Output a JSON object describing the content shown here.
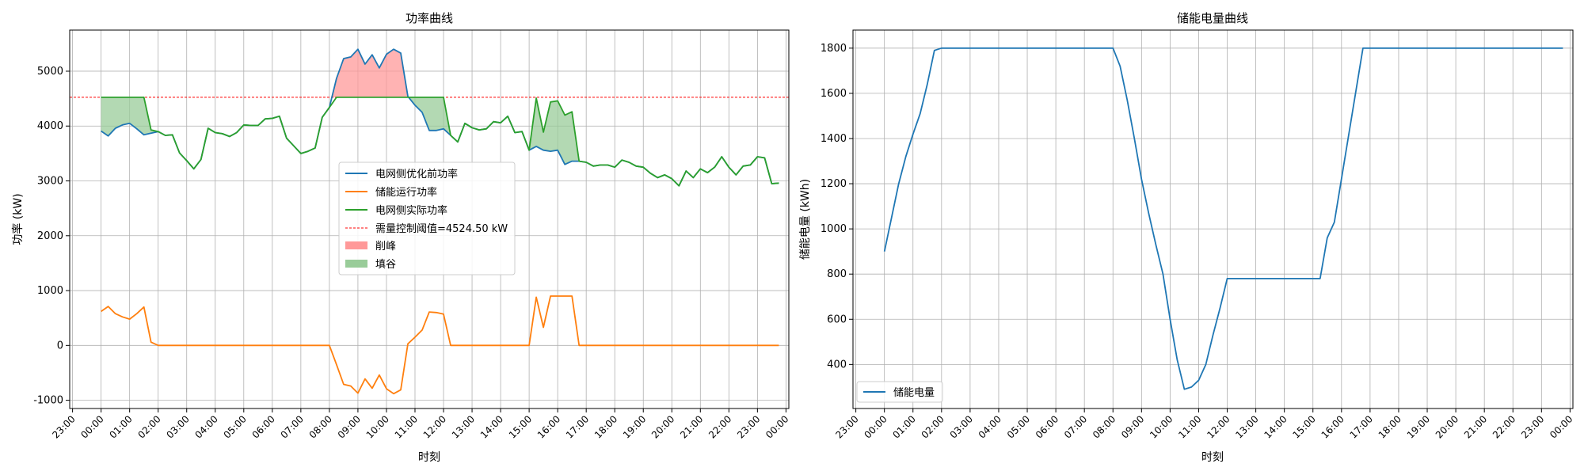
{
  "chart_data": [
    {
      "type": "line",
      "title": "功率曲线",
      "xlabel": "时刻",
      "ylabel": "功率 (kW)",
      "x_ticks": [
        "23:00",
        "00:00",
        "01:00",
        "02:00",
        "03:00",
        "04:00",
        "05:00",
        "06:00",
        "07:00",
        "08:00",
        "09:00",
        "10:00",
        "11:00",
        "12:00",
        "13:00",
        "14:00",
        "15:00",
        "16:00",
        "17:00",
        "18:00",
        "19:00",
        "20:00",
        "21:00",
        "22:00",
        "23:00",
        "00:00"
      ],
      "xlim": [
        -1.1,
        24.1
      ],
      "ylim": [
        -1150,
        5750
      ],
      "y_ticks": [
        -1000,
        0,
        1000,
        2000,
        3000,
        4000,
        5000
      ],
      "grid": true,
      "legend_position": "center",
      "x": [
        0,
        0.25,
        0.5,
        0.75,
        1,
        1.25,
        1.5,
        1.75,
        2,
        2.25,
        2.5,
        2.75,
        3,
        3.25,
        3.5,
        3.75,
        4,
        4.25,
        4.5,
        4.75,
        5,
        5.25,
        5.5,
        5.75,
        6,
        6.25,
        6.5,
        6.75,
        7,
        7.25,
        7.5,
        7.75,
        8,
        8.25,
        8.5,
        8.75,
        9,
        9.25,
        9.5,
        9.75,
        10,
        10.25,
        10.5,
        10.75,
        11,
        11.25,
        11.5,
        11.75,
        12,
        12.25,
        12.5,
        12.75,
        13,
        13.25,
        13.5,
        13.75,
        14,
        14.25,
        14.5,
        14.75,
        15,
        15.25,
        15.5,
        15.75,
        16,
        16.25,
        16.5,
        16.75,
        17,
        17.25,
        17.5,
        17.75,
        18,
        18.25,
        18.5,
        18.75,
        19,
        19.25,
        19.5,
        19.75,
        20,
        20.25,
        20.5,
        20.75,
        21,
        21.25,
        21.5,
        21.75,
        22,
        22.25,
        22.5,
        22.75,
        23,
        23.25,
        23.5,
        23.75
      ],
      "series": [
        {
          "name": "电网侧优化前功率",
          "color": "#1f77b4",
          "values": [
            3910,
            3820,
            3960,
            4020,
            4050,
            3950,
            3840,
            3870,
            3900,
            3830,
            3840,
            3510,
            3370,
            3220,
            3390,
            3960,
            3880,
            3860,
            3810,
            3880,
            4020,
            4010,
            4010,
            4130,
            4140,
            4180,
            3780,
            3640,
            3500,
            3540,
            3600,
            4160,
            4340,
            4870,
            5230,
            5260,
            5400,
            5130,
            5300,
            5060,
            5310,
            5400,
            5330,
            4540,
            4380,
            4250,
            3920,
            3920,
            3950,
            3830,
            3710,
            4050,
            3970,
            3930,
            3950,
            4080,
            4060,
            4180,
            3880,
            3900,
            3560,
            3630,
            3560,
            3540,
            3560,
            3300,
            3360,
            3360,
            3340,
            3270,
            3290,
            3290,
            3250,
            3380,
            3340,
            3270,
            3250,
            3140,
            3060,
            3110,
            3040,
            2910,
            3180,
            3060,
            3220,
            3150,
            3250,
            3440,
            3250,
            3110,
            3270,
            3290,
            3440,
            3420,
            2950,
            2960
          ]
        },
        {
          "name": "储能运行功率",
          "color": "#ff7f0e",
          "values": [
            620,
            710,
            580,
            520,
            480,
            580,
            700,
            60,
            0,
            0,
            0,
            0,
            0,
            0,
            0,
            0,
            0,
            0,
            0,
            0,
            0,
            0,
            0,
            0,
            0,
            0,
            0,
            0,
            0,
            0,
            0,
            0,
            0,
            -350,
            -710,
            -740,
            -870,
            -610,
            -780,
            -540,
            -790,
            -880,
            -810,
            30,
            150,
            280,
            610,
            600,
            570,
            0,
            0,
            0,
            0,
            0,
            0,
            0,
            0,
            0,
            0,
            0,
            0,
            880,
            330,
            900,
            900,
            900,
            900,
            0,
            0,
            0,
            0,
            0,
            0,
            0,
            0,
            0,
            0,
            0,
            0,
            0,
            0,
            0,
            0,
            0,
            0,
            0,
            0,
            0,
            0,
            0,
            0,
            0,
            0,
            0,
            0,
            0
          ]
        },
        {
          "name": "电网侧实际功率",
          "color": "#2ca02c",
          "values": [
            4524.5,
            4524.5,
            4524.5,
            4524.5,
            4524.5,
            4524.5,
            4524.5,
            3930,
            3900,
            3830,
            3840,
            3510,
            3370,
            3220,
            3390,
            3960,
            3880,
            3860,
            3810,
            3880,
            4020,
            4010,
            4010,
            4130,
            4140,
            4180,
            3780,
            3640,
            3500,
            3540,
            3600,
            4160,
            4340,
            4524.5,
            4524.5,
            4524.5,
            4524.5,
            4524.5,
            4524.5,
            4524.5,
            4524.5,
            4524.5,
            4524.5,
            4524.5,
            4524.5,
            4524.5,
            4524.5,
            4524.5,
            4524.5,
            3830,
            3710,
            4050,
            3970,
            3930,
            3950,
            4080,
            4060,
            4180,
            3880,
            3900,
            3560,
            4510,
            3890,
            4440,
            4460,
            4200,
            4260,
            3360,
            3340,
            3270,
            3290,
            3290,
            3250,
            3380,
            3340,
            3270,
            3250,
            3140,
            3060,
            3110,
            3040,
            2910,
            3180,
            3060,
            3220,
            3150,
            3250,
            3440,
            3250,
            3110,
            3270,
            3290,
            3440,
            3420,
            2950,
            2960
          ]
        }
      ],
      "threshold": {
        "name": "需量控制阈值=4524.50 kW",
        "value": 4524.5,
        "color": "#ff0000"
      },
      "fills": [
        {
          "name": "削峰",
          "color": "#ff9999"
        },
        {
          "name": "填谷",
          "color": "#99cc99"
        }
      ]
    },
    {
      "type": "line",
      "title": "储能电量曲线",
      "xlabel": "时刻",
      "ylabel": "储能电量 (kWh)",
      "x_ticks": [
        "23:00",
        "00:00",
        "01:00",
        "02:00",
        "03:00",
        "04:00",
        "05:00",
        "06:00",
        "07:00",
        "08:00",
        "09:00",
        "10:00",
        "11:00",
        "12:00",
        "13:00",
        "14:00",
        "15:00",
        "16:00",
        "17:00",
        "18:00",
        "19:00",
        "20:00",
        "21:00",
        "22:00",
        "23:00",
        "00:00"
      ],
      "xlim": [
        -1.1,
        24.1
      ],
      "ylim": [
        205,
        1880
      ],
      "y_ticks": [
        400,
        600,
        800,
        1000,
        1200,
        1400,
        1600,
        1800
      ],
      "grid": true,
      "legend_position": "lower left",
      "series": [
        {
          "name": "储能电量",
          "color": "#1f77b4",
          "x": [
            0,
            0.25,
            0.5,
            0.75,
            1,
            1.25,
            1.5,
            1.75,
            2,
            8,
            8.25,
            8.5,
            8.75,
            9,
            9.25,
            9.5,
            9.75,
            10,
            10.25,
            10.5,
            10.75,
            11,
            11.25,
            11.5,
            11.75,
            12,
            12.25,
            15.25,
            15.5,
            15.75,
            16.75,
            23.75
          ],
          "values": [
            900,
            1050,
            1200,
            1320,
            1420,
            1510,
            1640,
            1790,
            1800,
            1800,
            1720,
            1570,
            1400,
            1220,
            1070,
            930,
            800,
            600,
            420,
            290,
            300,
            330,
            400,
            530,
            650,
            780,
            780,
            780,
            960,
            1030,
            1800,
            1800
          ]
        }
      ]
    }
  ]
}
